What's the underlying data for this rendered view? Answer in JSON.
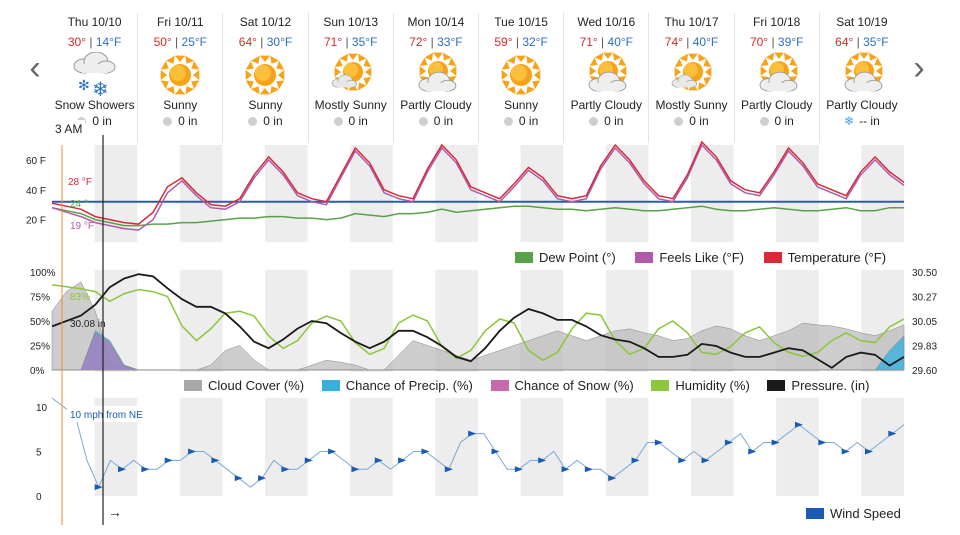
{
  "nav": {
    "prev": "‹",
    "next": "›"
  },
  "days": [
    {
      "name": "Thu 10/10",
      "hi": "30°",
      "lo": "14°F",
      "icon": "snow-showers-icon",
      "cond": "Snow Showers",
      "precip": "0 in",
      "precip_icon": "drop"
    },
    {
      "name": "Fri 10/11",
      "hi": "50°",
      "lo": "25°F",
      "icon": "sun-icon",
      "cond": "Sunny",
      "precip": "0 in",
      "precip_icon": "drop"
    },
    {
      "name": "Sat 10/12",
      "hi": "64°",
      "lo": "30°F",
      "icon": "sun-icon",
      "cond": "Sunny",
      "precip": "0 in",
      "precip_icon": "drop"
    },
    {
      "name": "Sun 10/13",
      "hi": "71°",
      "lo": "35°F",
      "icon": "mostly-sunny-icon",
      "cond": "Mostly Sunny",
      "precip": "0 in",
      "precip_icon": "drop"
    },
    {
      "name": "Mon 10/14",
      "hi": "72°",
      "lo": "33°F",
      "icon": "partly-cloudy-icon",
      "cond": "Partly Cloudy",
      "precip": "0 in",
      "precip_icon": "drop"
    },
    {
      "name": "Tue 10/15",
      "hi": "59°",
      "lo": "32°F",
      "icon": "sun-icon",
      "cond": "Sunny",
      "precip": "0 in",
      "precip_icon": "drop"
    },
    {
      "name": "Wed 10/16",
      "hi": "71°",
      "lo": "40°F",
      "icon": "partly-cloudy-icon",
      "cond": "Partly Cloudy",
      "precip": "0 in",
      "precip_icon": "drop"
    },
    {
      "name": "Thu 10/17",
      "hi": "74°",
      "lo": "40°F",
      "icon": "mostly-sunny-icon",
      "cond": "Mostly Sunny",
      "precip": "0 in",
      "precip_icon": "drop"
    },
    {
      "name": "Fri 10/18",
      "hi": "70°",
      "lo": "39°F",
      "icon": "partly-cloudy-icon",
      "cond": "Partly Cloudy",
      "precip": "0 in",
      "precip_icon": "drop"
    },
    {
      "name": "Sat 10/19",
      "hi": "64°",
      "lo": "35°F",
      "icon": "partly-cloudy-icon",
      "cond": "Partly Cloudy",
      "precip": "-- in",
      "precip_icon": "snowflake"
    }
  ],
  "time_label": "3 AM",
  "temp_chart": {
    "y_ticks": [
      "60 F",
      "40 F",
      "20 F"
    ],
    "readouts": {
      "temperature": "28 °F",
      "dew_point": "24 °",
      "feels_like": "19 °F"
    },
    "legend": [
      "Dew Point (°)",
      "Feels Like (°F)",
      "Temperature (°F)"
    ],
    "colors": {
      "dew_point": "#5aa04a",
      "feels_like": "#b05aa8",
      "temperature": "#d62a3a",
      "freezing": "#2a5ab8"
    }
  },
  "humidity_chart": {
    "y_ticks_left": [
      "100%",
      "75%",
      "50%",
      "25%",
      "0%"
    ],
    "y_ticks_right": [
      "30.50",
      "30.27",
      "30.05",
      "29.83",
      "29.60"
    ],
    "readouts": {
      "humidity": "83%",
      "pressure": "30.08 in"
    },
    "legend": [
      "Cloud Cover (%)",
      "Chance of Precip. (%)",
      "Chance of Snow (%)",
      "Humidity (%)",
      "Pressure. (in)"
    ],
    "colors": {
      "cloud": "#a8a8a8",
      "precip": "#38b0de",
      "snow": "#c86ab0",
      "humidity": "#8cc63a",
      "pressure": "#1a1a1a"
    }
  },
  "wind_chart": {
    "y_ticks": [
      "10",
      "5",
      "0"
    ],
    "readout": "10 mph from NE",
    "direction_arrow": "→",
    "legend": [
      "Wind Speed"
    ],
    "colors": {
      "wind": "#1a5ab0"
    }
  },
  "chart_data": [
    {
      "type": "line",
      "title": "",
      "ylabel": "",
      "ylim": [
        5,
        70
      ],
      "series": [
        {
          "name": "Temperature (°F)",
          "values": [
            31,
            29,
            27,
            22,
            20,
            18,
            17,
            25,
            42,
            48,
            38,
            30,
            29,
            34,
            50,
            62,
            52,
            38,
            34,
            32,
            50,
            68,
            58,
            40,
            36,
            34,
            54,
            70,
            60,
            42,
            38,
            34,
            44,
            55,
            48,
            36,
            34,
            36,
            56,
            70,
            60,
            46,
            36,
            34,
            50,
            72,
            62,
            46,
            40,
            38,
            52,
            68,
            58,
            44,
            40,
            36,
            52,
            62,
            52,
            45
          ]
        },
        {
          "name": "Feels Like (°F)",
          "values": [
            28,
            25,
            22,
            18,
            16,
            14,
            13,
            20,
            38,
            46,
            36,
            28,
            27,
            32,
            48,
            60,
            50,
            36,
            32,
            30,
            48,
            66,
            56,
            38,
            34,
            32,
            52,
            68,
            58,
            40,
            36,
            32,
            42,
            53,
            46,
            34,
            32,
            34,
            54,
            68,
            58,
            44,
            34,
            32,
            48,
            70,
            60,
            44,
            38,
            36,
            50,
            66,
            56,
            42,
            38,
            34,
            50,
            60,
            50,
            43
          ]
        },
        {
          "name": "Dew Point (°)",
          "values": [
            28,
            26,
            24,
            20,
            18,
            16,
            16,
            17,
            17,
            18,
            18,
            19,
            20,
            21,
            21,
            22,
            22,
            21,
            21,
            20,
            21,
            24,
            23,
            22,
            24,
            24,
            25,
            27,
            25,
            26,
            27,
            28,
            29,
            29,
            28,
            27,
            27,
            26,
            27,
            28,
            27,
            26,
            26,
            27,
            28,
            29,
            27,
            26,
            26,
            27,
            28,
            27,
            26,
            26,
            27,
            28,
            26,
            26,
            28,
            28
          ]
        }
      ]
    },
    {
      "type": "line",
      "title": "",
      "ylabel": "",
      "ylim": [
        0,
        100
      ],
      "series": [
        {
          "name": "Humidity (%)",
          "values": [
            87,
            85,
            83,
            80,
            70,
            78,
            82,
            80,
            75,
            45,
            30,
            42,
            58,
            60,
            55,
            35,
            22,
            30,
            48,
            55,
            50,
            28,
            16,
            22,
            48,
            56,
            50,
            24,
            12,
            20,
            40,
            52,
            48,
            20,
            10,
            18,
            42,
            58,
            56,
            30,
            16,
            22,
            42,
            50,
            38,
            18,
            16,
            24,
            38,
            44,
            28,
            18,
            14,
            18,
            30,
            38,
            30,
            28,
            44,
            52
          ]
        },
        {
          "name": "Cloud Cover (%)",
          "values": [
            60,
            80,
            90,
            60,
            10,
            5,
            0,
            0,
            0,
            0,
            0,
            5,
            20,
            25,
            10,
            0,
            0,
            0,
            5,
            10,
            8,
            5,
            0,
            0,
            15,
            30,
            25,
            20,
            15,
            10,
            15,
            20,
            25,
            30,
            35,
            40,
            35,
            30,
            35,
            40,
            42,
            38,
            35,
            30,
            32,
            40,
            45,
            42,
            35,
            30,
            35,
            40,
            48,
            46,
            45,
            42,
            38,
            35,
            40,
            46
          ]
        },
        {
          "name": "Chance of Precip. (%)",
          "values": [
            0,
            0,
            0,
            40,
            30,
            5,
            0,
            0,
            0,
            0,
            0,
            0,
            0,
            0,
            0,
            0,
            0,
            0,
            0,
            0,
            0,
            0,
            0,
            0,
            0,
            0,
            0,
            0,
            0,
            0,
            0,
            0,
            0,
            0,
            0,
            0,
            0,
            0,
            0,
            0,
            0,
            0,
            0,
            0,
            0,
            0,
            0,
            0,
            0,
            0,
            0,
            0,
            0,
            0,
            0,
            0,
            0,
            0,
            20,
            35
          ]
        },
        {
          "name": "Chance of Snow (%)",
          "values": [
            0,
            0,
            0,
            38,
            28,
            4,
            0,
            0,
            0,
            0,
            0,
            0,
            0,
            0,
            0,
            0,
            0,
            0,
            0,
            0,
            0,
            0,
            0,
            0,
            0,
            0,
            0,
            0,
            0,
            0,
            0,
            0,
            0,
            0,
            0,
            0,
            0,
            0,
            0,
            0,
            0,
            0,
            0,
            0,
            0,
            0,
            0,
            0,
            0,
            0,
            0,
            0,
            0,
            0,
            0,
            0,
            0,
            0,
            0,
            0
          ]
        },
        {
          "name": "Pressure. (in)",
          "values": [
            30.0,
            30.05,
            30.1,
            30.2,
            30.36,
            30.44,
            30.48,
            30.46,
            30.35,
            30.25,
            30.18,
            30.18,
            30.12,
            30.0,
            29.86,
            29.8,
            29.88,
            29.98,
            30.05,
            30.03,
            29.94,
            29.86,
            29.8,
            29.86,
            29.96,
            29.96,
            29.9,
            29.82,
            29.72,
            29.68,
            29.8,
            29.96,
            30.08,
            30.16,
            30.12,
            30.06,
            30.06,
            30.0,
            29.92,
            29.88,
            29.86,
            29.8,
            29.72,
            29.72,
            29.74,
            29.84,
            29.82,
            29.76,
            29.72,
            29.72,
            29.76,
            29.8,
            29.78,
            29.7,
            29.62,
            29.72,
            29.76,
            29.74,
            29.64,
            29.72
          ]
        }
      ]
    },
    {
      "type": "line",
      "title": "",
      "ylabel": "",
      "ylim": [
        0,
        11
      ],
      "series": [
        {
          "name": "Wind Speed",
          "values": [
            11,
            10,
            9,
            4,
            1,
            4,
            3,
            4,
            3,
            3,
            4,
            4,
            5,
            5,
            4,
            3,
            2,
            1,
            2,
            4,
            3,
            3,
            4,
            5,
            5,
            4,
            3,
            3,
            4,
            3,
            4,
            5,
            5,
            4,
            3,
            6,
            7,
            7,
            5,
            3,
            3,
            4,
            4,
            5,
            3,
            4,
            3,
            3,
            2,
            3,
            4,
            6,
            6,
            5,
            4,
            5,
            4,
            5,
            6,
            7,
            5,
            6,
            6,
            7,
            8,
            7,
            6,
            6,
            5,
            6,
            5,
            6,
            7,
            8
          ]
        }
      ]
    }
  ]
}
